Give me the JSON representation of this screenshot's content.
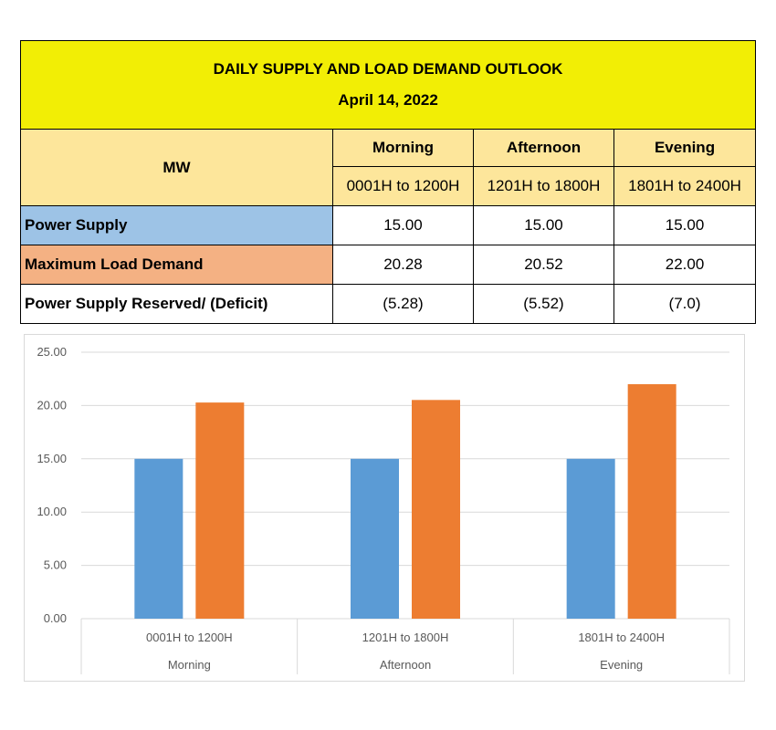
{
  "header": {
    "title": "DAILY SUPPLY AND LOAD DEMAND OUTLOOK",
    "date": "April 14, 2022"
  },
  "table": {
    "unit_label": "MW",
    "periods": [
      {
        "name": "Morning",
        "range": "0001H to 1200H"
      },
      {
        "name": "Afternoon",
        "range": "1201H to 1800H"
      },
      {
        "name": "Evening",
        "range": "1801H to 2400H"
      }
    ],
    "rows": [
      {
        "label": "Power Supply",
        "values": [
          "15.00",
          "15.00",
          "15.00"
        ]
      },
      {
        "label": "Maximum Load Demand",
        "values": [
          "20.28",
          "20.52",
          "22.00"
        ]
      },
      {
        "label": "Power Supply Reserved/ (Deficit)",
        "values": [
          "(5.28)",
          "(5.52)",
          "(7.0)"
        ]
      }
    ]
  },
  "colors": {
    "title_bg": "#f2ee05",
    "header_bg": "#fde69b",
    "supply": "#5b9bd5",
    "demand": "#ed7d31",
    "supply_label_bg": "#9dc3e6",
    "demand_label_bg": "#f4b183",
    "grid": "#d9d9d9"
  },
  "chart_data": {
    "type": "bar",
    "categories": [
      {
        "range": "0001H to 1200H",
        "period": "Morning"
      },
      {
        "range": "1201H to 1800H",
        "period": "Afternoon"
      },
      {
        "range": "1801H to 2400H",
        "period": "Evening"
      }
    ],
    "series": [
      {
        "values": [
          15.0,
          15.0,
          15.0
        ],
        "color": "#5b9bd5"
      },
      {
        "values": [
          20.28,
          20.52,
          22.0
        ],
        "color": "#ed7d31"
      }
    ],
    "yticks": [
      "0.00",
      "5.00",
      "10.00",
      "15.00",
      "20.00",
      "25.00"
    ],
    "ylim": [
      0,
      25
    ],
    "grid": true,
    "legend": "none"
  }
}
